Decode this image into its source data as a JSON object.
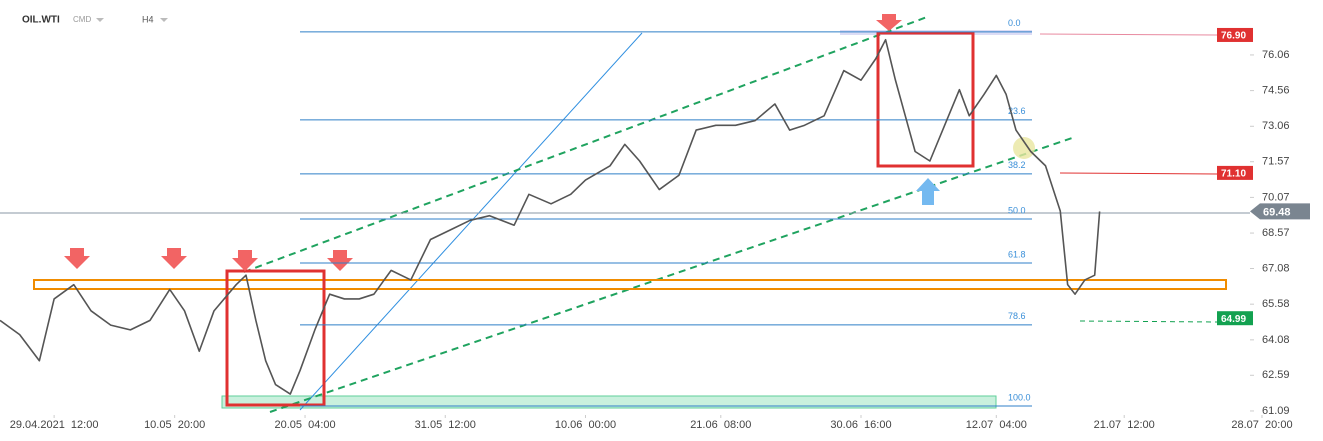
{
  "header": {
    "symbol": "OIL.WTI",
    "market": "CMD",
    "interval": "H4"
  },
  "chart_data": {
    "type": "line",
    "x": [
      0,
      8,
      16,
      22,
      30,
      37,
      45,
      53,
      61,
      69,
      75,
      81,
      87,
      96,
      100,
      104,
      108,
      112,
      118,
      122,
      128,
      134,
      140,
      146,
      152,
      159,
      167,
      175,
      183,
      191,
      199,
      209,
      215,
      224,
      232,
      238,
      248,
      254,
      260,
      268,
      276,
      283,
      291,
      299,
      307,
      315,
      321,
      327,
      335,
      343,
      350,
      356,
      360,
      364,
      368,
      372,
      378,
      384,
      390,
      394,
      400,
      405,
      409,
      413,
      419,
      425,
      431,
      434,
      437,
      441,
      445,
      447
    ],
    "series": [
      {
        "color": "#555555",
        "values": [
          64.9,
          64.3,
          63.2,
          65.8,
          66.4,
          65.3,
          64.7,
          64.5,
          64.9,
          66.2,
          65.3,
          63.6,
          65.3,
          66.4,
          66.8,
          64.9,
          63.2,
          62.2,
          61.8,
          62.8,
          64.5,
          66.0,
          65.8,
          65.8,
          66.0,
          67.0,
          66.6,
          68.3,
          68.7,
          69.1,
          69.3,
          68.9,
          70.2,
          69.8,
          70.2,
          70.8,
          71.4,
          72.3,
          71.6,
          70.4,
          71.0,
          72.9,
          73.1,
          73.1,
          73.3,
          74.0,
          72.9,
          73.1,
          73.5,
          75.4,
          75.0,
          75.9,
          76.7,
          75.0,
          73.5,
          72.0,
          71.6,
          73.1,
          74.6,
          73.5,
          74.4,
          75.2,
          74.4,
          72.9,
          72.0,
          71.4,
          69.5,
          66.4,
          66.0,
          66.6,
          66.8,
          69.48
        ]
      }
    ],
    "xlim": [
      0,
      520
    ],
    "xticks": [
      {
        "value": 22,
        "label": "29.04.2021  12:00"
      },
      {
        "value": 71,
        "label": "10.05  20:00"
      },
      {
        "value": 124,
        "label": "20.05  04:00"
      },
      {
        "value": 181,
        "label": "31.05  12:00"
      },
      {
        "value": 238,
        "label": "10.06  00:00"
      },
      {
        "value": 293,
        "label": "21.06  08:00"
      },
      {
        "value": 350,
        "label": "30.06  16:00"
      },
      {
        "value": 405,
        "label": "12.07  04:00"
      },
      {
        "value": 457,
        "label": "21.07  12:00"
      },
      {
        "value": 513,
        "label": "28.07  20:00"
      }
    ],
    "ylim": [
      60.92,
      78.37
    ],
    "yticks": [
      61.09,
      62.59,
      64.08,
      65.58,
      67.08,
      68.57,
      70.07,
      71.57,
      73.06,
      74.56,
      76.06
    ],
    "fib_levels": [
      {
        "label": "0.0",
        "value": 77.03
      },
      {
        "label": "23.6",
        "value": 73.33
      },
      {
        "label": "38.2",
        "value": 71.06
      },
      {
        "label": "50.0",
        "value": 69.16
      },
      {
        "label": "61.8",
        "value": 67.31
      },
      {
        "label": "78.6",
        "value": 64.71
      },
      {
        "label": "100.0",
        "value": 61.3
      }
    ],
    "price_tags": [
      {
        "label": "76.90",
        "value": 76.9,
        "color": "#e03131"
      },
      {
        "label": "71.10",
        "value": 71.1,
        "color": "#e03131"
      },
      {
        "label": "69.48",
        "value": 69.48,
        "color": "#7a8590"
      },
      {
        "label": "64.99",
        "value": 64.99,
        "color": "#12a150"
      }
    ]
  }
}
